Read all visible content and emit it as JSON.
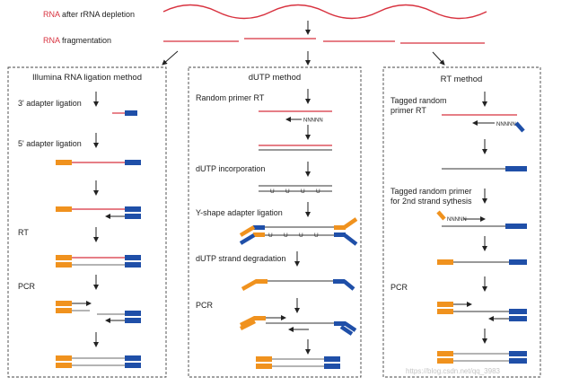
{
  "top": {
    "depletion": {
      "prefix": "RNA",
      "rest": " after rRNA depletion"
    },
    "fragmentation": {
      "prefix": "RNA",
      "rest": " fragmentation"
    }
  },
  "panels": {
    "illumina": {
      "title": "Illumina RNA ligation method",
      "steps": [
        "3' adapter ligation",
        "5' adapter ligation",
        "RT",
        "PCR"
      ]
    },
    "dutp": {
      "title": "dUTP method",
      "steps": [
        "Random primer RT",
        "dUTP incorporation",
        "Y-shape adapter ligation",
        "dUTP strand degradation",
        "PCR"
      ],
      "primer_tag": "NNNNN",
      "uracil": "U"
    },
    "rt": {
      "title": "RT method",
      "steps": [
        "Tagged random",
        "primer RT",
        "Tagged random primer",
        "for 2nd strand sythesis",
        "PCR"
      ],
      "primer_tag": "NNNNN"
    }
  },
  "watermark": "https://blog.csdn.net/qq_3983",
  "colors": {
    "rna": "#d8323f",
    "dna": "#333333",
    "adapter5": "#f0921e",
    "adapter3": "#1f4fa8"
  }
}
